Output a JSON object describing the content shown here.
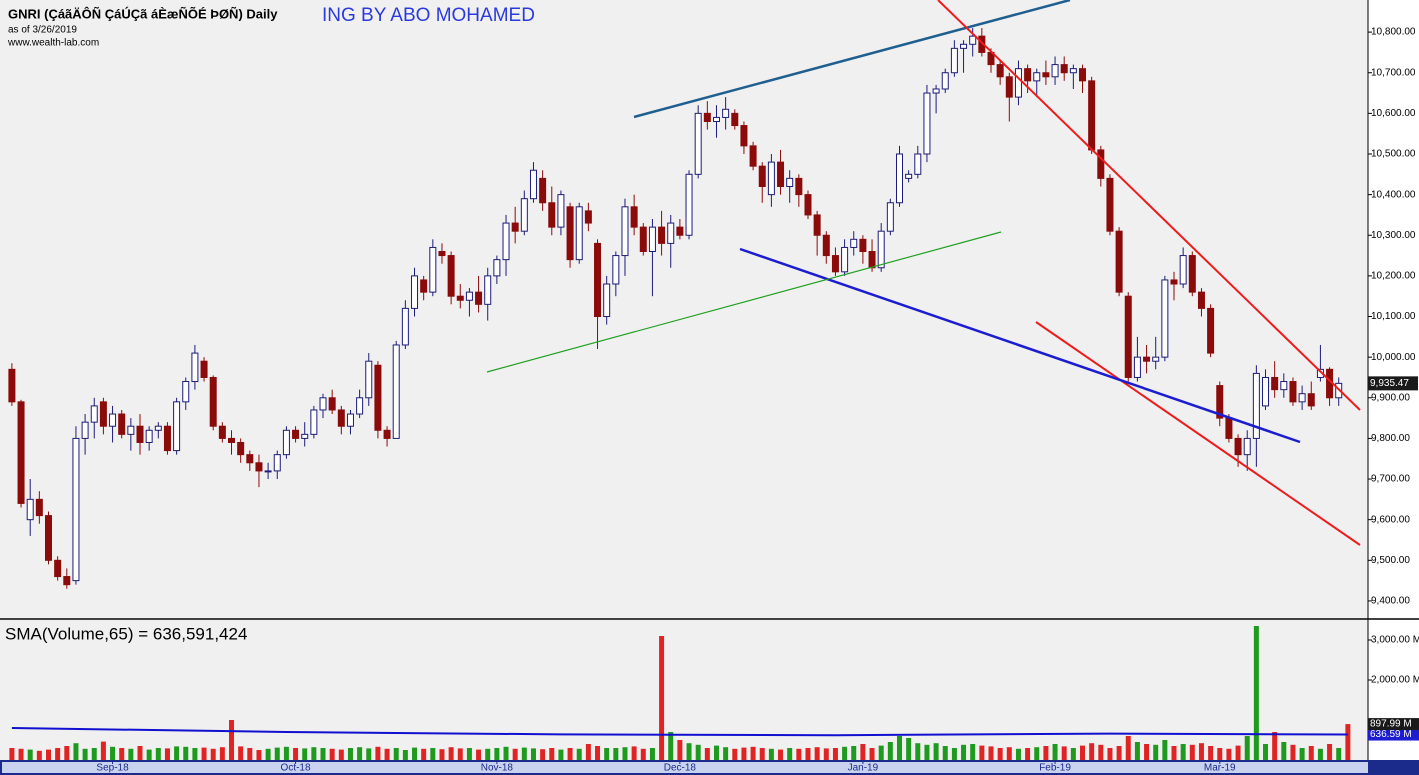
{
  "chart_data": [
    {
      "type": "candlestick",
      "title": "GNRI (ÇáãÄÔÑ ÇáÚÇã áÈæÑÕÉ ÞØÑ) Daily",
      "annotation": "ING BY ABO MOHAMED",
      "subtitle": "as of 3/26/2019",
      "source": "www.wealth-lab.com",
      "up_color": "#1c1c7a",
      "down_color": "#8b0a0a",
      "xlim": [
        -1.3,
        148.2
      ],
      "ylim": [
        9358,
        10879
      ],
      "yticks": [
        {
          "value": 9400,
          "label": "9,400.00"
        },
        {
          "value": 9500,
          "label": "9,500.00"
        },
        {
          "value": 9600,
          "label": "9,600.00"
        },
        {
          "value": 9700,
          "label": "9,700.00"
        },
        {
          "value": 9800,
          "label": "9,800.00"
        },
        {
          "value": 9900,
          "label": "9,900.00"
        },
        {
          "value": 10000,
          "label": "10,000.00"
        },
        {
          "value": 10100,
          "label": "10,100.00"
        },
        {
          "value": 10200,
          "label": "10,200.00"
        },
        {
          "value": 10300,
          "label": "10,300.00"
        },
        {
          "value": 10400,
          "label": "10,400.00"
        },
        {
          "value": 10500,
          "label": "10,500.00"
        },
        {
          "value": 10600,
          "label": "10,600.00"
        },
        {
          "value": 10700,
          "label": "10,700.00"
        },
        {
          "value": 10800,
          "label": "10,800.00"
        }
      ],
      "last_label": "9,935.47",
      "ohlc": [
        [
          9970,
          9985,
          9880,
          9890
        ],
        [
          9890,
          9895,
          9630,
          9640
        ],
        [
          9600,
          9700,
          9560,
          9650
        ],
        [
          9650,
          9670,
          9590,
          9610
        ],
        [
          9610,
          9620,
          9490,
          9500
        ],
        [
          9500,
          9510,
          9450,
          9460
        ],
        [
          9460,
          9480,
          9430,
          9440
        ],
        [
          9450,
          9830,
          9440,
          9800
        ],
        [
          9800,
          9860,
          9760,
          9840
        ],
        [
          9840,
          9900,
          9800,
          9880
        ],
        [
          9890,
          9900,
          9810,
          9830
        ],
        [
          9830,
          9880,
          9790,
          9860
        ],
        [
          9860,
          9870,
          9800,
          9810
        ],
        [
          9810,
          9850,
          9770,
          9830
        ],
        [
          9830,
          9860,
          9760,
          9790
        ],
        [
          9790,
          9830,
          9770,
          9820
        ],
        [
          9820,
          9840,
          9800,
          9830
        ],
        [
          9830,
          9840,
          9760,
          9770
        ],
        [
          9770,
          9900,
          9760,
          9890
        ],
        [
          9890,
          9950,
          9870,
          9940
        ],
        [
          9940,
          10030,
          9920,
          10010
        ],
        [
          9990,
          10000,
          9940,
          9950
        ],
        [
          9950,
          9955,
          9820,
          9830
        ],
        [
          9830,
          9840,
          9790,
          9800
        ],
        [
          9800,
          9820,
          9760,
          9790
        ],
        [
          9790,
          9800,
          9740,
          9760
        ],
        [
          9760,
          9770,
          9720,
          9740
        ],
        [
          9740,
          9760,
          9680,
          9720
        ],
        [
          9720,
          9740,
          9700,
          9720
        ],
        [
          9720,
          9770,
          9700,
          9760
        ],
        [
          9760,
          9830,
          9750,
          9820
        ],
        [
          9820,
          9830,
          9790,
          9800
        ],
        [
          9800,
          9840,
          9780,
          9810
        ],
        [
          9810,
          9880,
          9800,
          9870
        ],
        [
          9870,
          9910,
          9850,
          9900
        ],
        [
          9900,
          9920,
          9860,
          9870
        ],
        [
          9870,
          9880,
          9810,
          9830
        ],
        [
          9830,
          9870,
          9810,
          9860
        ],
        [
          9860,
          9920,
          9850,
          9900
        ],
        [
          9900,
          10010,
          9880,
          9990
        ],
        [
          9980,
          9990,
          9800,
          9820
        ],
        [
          9820,
          9830,
          9780,
          9800
        ],
        [
          9800,
          10040,
          9800,
          10030
        ],
        [
          10030,
          10140,
          10020,
          10120
        ],
        [
          10120,
          10220,
          10100,
          10200
        ],
        [
          10190,
          10200,
          10140,
          10160
        ],
        [
          10160,
          10290,
          10150,
          10270
        ],
        [
          10260,
          10280,
          10230,
          10250
        ],
        [
          10250,
          10260,
          10130,
          10150
        ],
        [
          10150,
          10180,
          10120,
          10140
        ],
        [
          10140,
          10170,
          10100,
          10160
        ],
        [
          10160,
          10200,
          10110,
          10130
        ],
        [
          10130,
          10220,
          10090,
          10200
        ],
        [
          10200,
          10250,
          10180,
          10240
        ],
        [
          10240,
          10350,
          10200,
          10330
        ],
        [
          10330,
          10370,
          10280,
          10310
        ],
        [
          10310,
          10410,
          10300,
          10390
        ],
        [
          10390,
          10480,
          10380,
          10460
        ],
        [
          10440,
          10460,
          10360,
          10380
        ],
        [
          10380,
          10420,
          10300,
          10320
        ],
        [
          10320,
          10410,
          10300,
          10400
        ],
        [
          10370,
          10380,
          10220,
          10240
        ],
        [
          10240,
          10380,
          10230,
          10370
        ],
        [
          10360,
          10380,
          10310,
          10330
        ],
        [
          10280,
          10290,
          10020,
          10100
        ],
        [
          10100,
          10200,
          10080,
          10180
        ],
        [
          10180,
          10260,
          10150,
          10250
        ],
        [
          10250,
          10390,
          10200,
          10370
        ],
        [
          10370,
          10400,
          10300,
          10320
        ],
        [
          10320,
          10330,
          10250,
          10260
        ],
        [
          10260,
          10340,
          10150,
          10320
        ],
        [
          10320,
          10360,
          10250,
          10280
        ],
        [
          10280,
          10350,
          10220,
          10330
        ],
        [
          10320,
          10340,
          10290,
          10300
        ],
        [
          10300,
          10460,
          10290,
          10450
        ],
        [
          10450,
          10620,
          10440,
          10600
        ],
        [
          10600,
          10630,
          10560,
          10580
        ],
        [
          10580,
          10620,
          10540,
          10590
        ],
        [
          10590,
          10640,
          10560,
          10610
        ],
        [
          10600,
          10610,
          10560,
          10570
        ],
        [
          10570,
          10580,
          10500,
          10520
        ],
        [
          10520,
          10530,
          10460,
          10470
        ],
        [
          10470,
          10480,
          10380,
          10420
        ],
        [
          10400,
          10500,
          10370,
          10480
        ],
        [
          10480,
          10510,
          10400,
          10420
        ],
        [
          10420,
          10460,
          10380,
          10440
        ],
        [
          10440,
          10450,
          10370,
          10400
        ],
        [
          10400,
          10410,
          10340,
          10350
        ],
        [
          10350,
          10360,
          10250,
          10300
        ],
        [
          10300,
          10310,
          10230,
          10250
        ],
        [
          10250,
          10270,
          10200,
          10210
        ],
        [
          10210,
          10290,
          10200,
          10270
        ],
        [
          10270,
          10310,
          10250,
          10290
        ],
        [
          10290,
          10300,
          10230,
          10260
        ],
        [
          10260,
          10290,
          10210,
          10220
        ],
        [
          10220,
          10330,
          10210,
          10310
        ],
        [
          10310,
          10390,
          10300,
          10380
        ],
        [
          10380,
          10520,
          10370,
          10500
        ],
        [
          10440,
          10460,
          10430,
          10450
        ],
        [
          10450,
          10520,
          10440,
          10500
        ],
        [
          10500,
          10670,
          10480,
          10650
        ],
        [
          10650,
          10670,
          10600,
          10660
        ],
        [
          10660,
          10710,
          10650,
          10700
        ],
        [
          10700,
          10780,
          10690,
          10760
        ],
        [
          10760,
          10780,
          10700,
          10770
        ],
        [
          10770,
          10810,
          10740,
          10790
        ],
        [
          10790,
          10810,
          10740,
          10750
        ],
        [
          10750,
          10760,
          10700,
          10720
        ],
        [
          10720,
          10730,
          10670,
          10690
        ],
        [
          10690,
          10700,
          10580,
          10640
        ],
        [
          10640,
          10730,
          10620,
          10710
        ],
        [
          10710,
          10720,
          10650,
          10680
        ],
        [
          10680,
          10710,
          10640,
          10700
        ],
        [
          10700,
          10730,
          10670,
          10690
        ],
        [
          10690,
          10740,
          10670,
          10720
        ],
        [
          10720,
          10740,
          10680,
          10700
        ],
        [
          10700,
          10720,
          10660,
          10710
        ],
        [
          10710,
          10720,
          10650,
          10680
        ],
        [
          10680,
          10690,
          10500,
          10510
        ],
        [
          10510,
          10520,
          10420,
          10440
        ],
        [
          10440,
          10450,
          10300,
          10310
        ],
        [
          10310,
          10320,
          10150,
          10160
        ],
        [
          10150,
          10160,
          9940,
          9950
        ],
        [
          9950,
          10050,
          9940,
          10000
        ],
        [
          10000,
          10030,
          9960,
          9990
        ],
        [
          9990,
          10050,
          9970,
          10000
        ],
        [
          10000,
          10200,
          9990,
          10190
        ],
        [
          10190,
          10210,
          10140,
          10180
        ],
        [
          10180,
          10270,
          10170,
          10250
        ],
        [
          10250,
          10260,
          10150,
          10160
        ],
        [
          10160,
          10170,
          10100,
          10120
        ],
        [
          10120,
          10130,
          10000,
          10010
        ],
        [
          9930,
          9940,
          9830,
          9850
        ],
        [
          9850,
          9860,
          9790,
          9800
        ],
        [
          9800,
          9810,
          9730,
          9760
        ],
        [
          9760,
          9820,
          9720,
          9800
        ],
        [
          9800,
          9980,
          9730,
          9960
        ],
        [
          9880,
          9970,
          9870,
          9950
        ],
        [
          9950,
          9990,
          9900,
          9920
        ],
        [
          9920,
          9960,
          9900,
          9940
        ],
        [
          9940,
          9950,
          9880,
          9890
        ],
        [
          9890,
          9930,
          9870,
          9910
        ],
        [
          9910,
          9940,
          9870,
          9880
        ],
        [
          9950,
          10030,
          9940,
          9970
        ],
        [
          9970,
          9975,
          9880,
          9900
        ],
        [
          9900,
          9950,
          9880,
          9935.47
        ]
      ]
    },
    {
      "type": "bar",
      "title": "SMA(Volume,65) = 636,591,424",
      "xlim": [
        -1.3,
        148.2
      ],
      "ylim": [
        0,
        3500
      ],
      "yticks": [
        {
          "value": 2000,
          "label": "2,000.00 M"
        },
        {
          "value": 3000,
          "label": "3,000.00 M"
        }
      ],
      "xticks": [
        {
          "value": 11,
          "label": "Sep-18"
        },
        {
          "value": 31,
          "label": "Oct-18"
        },
        {
          "value": 53,
          "label": "Nov-18"
        },
        {
          "value": 73,
          "label": "Dec-18"
        },
        {
          "value": 93,
          "label": "Jan-19"
        },
        {
          "value": 114,
          "label": "Feb-19"
        },
        {
          "value": 132,
          "label": "Mar-19"
        }
      ],
      "up_color": "#1e9a1e",
      "down_color": "#e02424",
      "values": [
        300,
        280,
        260,
        230,
        260,
        300,
        350,
        420,
        280,
        300,
        460,
        330,
        300,
        280,
        350,
        260,
        300,
        290,
        340,
        330,
        300,
        310,
        280,
        320,
        1000,
        340,
        300,
        250,
        280,
        310,
        330,
        300,
        290,
        320,
        300,
        280,
        260,
        300,
        320,
        290,
        330,
        280,
        300,
        250,
        310,
        280,
        300,
        270,
        320,
        290,
        300,
        260,
        280,
        300,
        330,
        280,
        310,
        290,
        270,
        300,
        260,
        300,
        280,
        400,
        350,
        300,
        300,
        320,
        340,
        280,
        300,
        3100,
        700,
        500,
        420,
        380,
        300,
        360,
        320,
        280,
        310,
        330,
        300,
        280,
        260,
        300,
        280,
        300,
        320,
        290,
        300,
        330,
        350,
        400,
        300,
        360,
        450,
        600,
        550,
        420,
        380,
        420,
        350,
        300,
        380,
        400,
        360,
        340,
        300,
        320,
        280,
        300,
        320,
        350,
        400,
        340,
        300,
        360,
        420,
        380,
        300,
        350,
        600,
        450,
        400,
        380,
        500,
        350,
        400,
        380,
        420,
        350,
        300,
        280,
        360,
        600,
        3350,
        400,
        700,
        450,
        380,
        300,
        350,
        280,
        400,
        300,
        897.99
      ],
      "last_label": "897.99 M",
      "sma": {
        "color": "#1010d0",
        "x": [
          0,
          30,
          60,
          90,
          120,
          146
        ],
        "values": [
          800,
          700,
          640,
          620,
          660,
          636.59
        ],
        "last_label": "636.59 M"
      }
    }
  ]
}
